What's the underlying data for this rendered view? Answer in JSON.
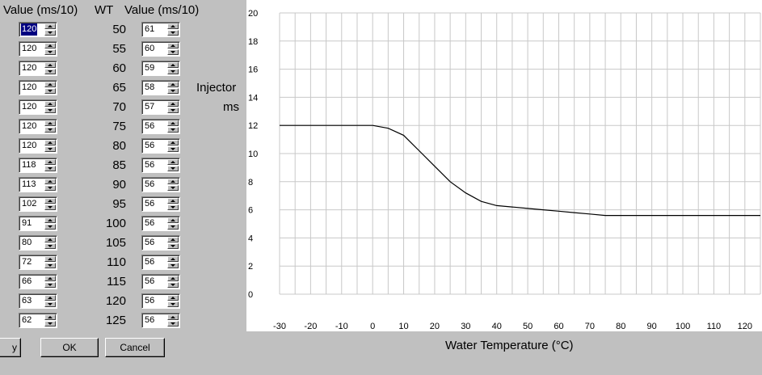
{
  "headers": {
    "left_value": "Value (ms/10)",
    "wt": "WT",
    "right_value": "Value (ms/10)"
  },
  "rows": [
    {
      "wt": "50",
      "left": "120",
      "right": "61"
    },
    {
      "wt": "55",
      "left": "120",
      "right": "60"
    },
    {
      "wt": "60",
      "left": "120",
      "right": "59"
    },
    {
      "wt": "65",
      "left": "120",
      "right": "58"
    },
    {
      "wt": "70",
      "left": "120",
      "right": "57"
    },
    {
      "wt": "75",
      "left": "120",
      "right": "56"
    },
    {
      "wt": "80",
      "left": "120",
      "right": "56"
    },
    {
      "wt": "85",
      "left": "118",
      "right": "56"
    },
    {
      "wt": "90",
      "left": "113",
      "right": "56"
    },
    {
      "wt": "95",
      "left": "102",
      "right": "56"
    },
    {
      "wt": "100",
      "left": "91",
      "right": "56"
    },
    {
      "wt": "105",
      "left": "80",
      "right": "56"
    },
    {
      "wt": "110",
      "left": "72",
      "right": "56"
    },
    {
      "wt": "115",
      "left": "66",
      "right": "56"
    },
    {
      "wt": "120",
      "left": "63",
      "right": "56"
    },
    {
      "wt": "125",
      "left": "62",
      "right": "56"
    }
  ],
  "y_axis_side_label": {
    "line1": "Injector",
    "line2": "ms"
  },
  "buttons": {
    "partial": "y",
    "ok": "OK",
    "cancel": "Cancel"
  },
  "chart_data": {
    "type": "line",
    "title": "",
    "xlabel": "Water Temperature (°C)",
    "ylabel": "Injector ms",
    "xlim": [
      -30,
      125
    ],
    "ylim": [
      0,
      20
    ],
    "x_ticks": [
      "-30",
      "-20",
      "-10",
      "0",
      "10",
      "20",
      "30",
      "40",
      "50",
      "60",
      "70",
      "80",
      "90",
      "100",
      "110",
      "120"
    ],
    "y_ticks": [
      "20",
      "18",
      "16",
      "14",
      "12",
      "10",
      "8",
      "6",
      "4",
      "2",
      "0"
    ],
    "grid": true,
    "series": [
      {
        "name": "Injector ms",
        "x": [
          -30,
          0,
          5,
          10,
          15,
          20,
          25,
          30,
          35,
          40,
          45,
          50,
          55,
          60,
          65,
          70,
          75,
          125
        ],
        "y": [
          12.0,
          12.0,
          11.8,
          11.3,
          10.2,
          9.1,
          8.0,
          7.2,
          6.6,
          6.3,
          6.2,
          6.1,
          6.0,
          5.9,
          5.8,
          5.7,
          5.6,
          5.6
        ]
      }
    ]
  }
}
